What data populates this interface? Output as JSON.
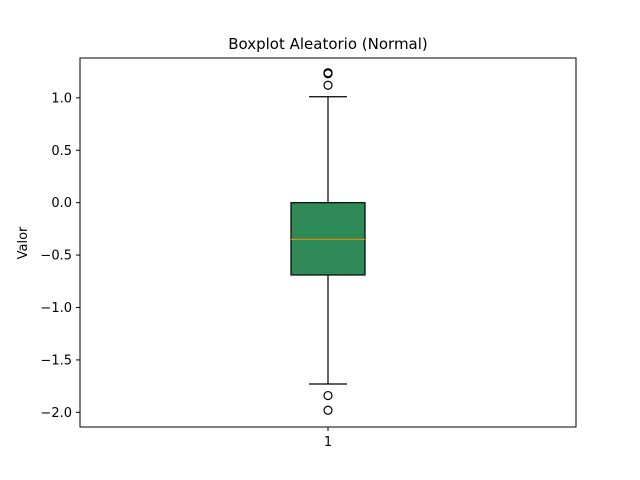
{
  "chart_data": {
    "type": "boxplot",
    "title": "Boxplot Aleatorio (Normal)",
    "xlabel": "",
    "ylabel": "Valor",
    "ylim": [
      -2.14,
      1.38
    ],
    "yticks": [
      1.0,
      0.5,
      0.0,
      -0.5,
      -1.0,
      -1.5,
      -2.0
    ],
    "ytick_labels": [
      "1.0",
      "0.5",
      "0.0",
      "−0.5",
      "−1.0",
      "−1.5",
      "−2.0"
    ],
    "categories": [
      "1"
    ],
    "boxes": [
      {
        "category": "1",
        "q1": -0.69,
        "median": -0.35,
        "q3": 0.0,
        "whisker_low": -1.73,
        "whisker_high": 1.01,
        "fliers": [
          1.24,
          1.23,
          1.12,
          -1.84,
          -1.98
        ]
      }
    ],
    "box_color": "#2e8b57",
    "median_color": "#d68910",
    "grid": false,
    "legend": "none"
  }
}
